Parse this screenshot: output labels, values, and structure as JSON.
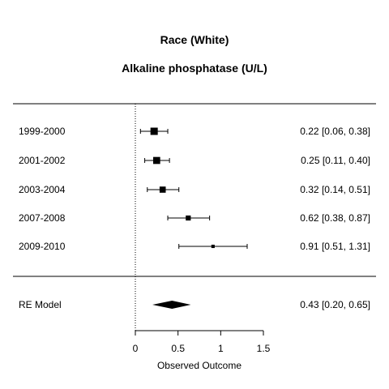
{
  "chart_data": {
    "type": "forest",
    "title": "Race (White)",
    "subtitle": "Alkaline phosphatase (U/L)",
    "xlabel": "Observed Outcome",
    "xlim": [
      0,
      1.5
    ],
    "xticks": [
      0,
      0.5,
      1,
      1.5
    ],
    "xtick_labels": [
      "0",
      "0.5",
      "1",
      "1.5"
    ],
    "reference_line": 0,
    "studies": [
      {
        "label": "1999-2000",
        "estimate": 0.22,
        "lower": 0.06,
        "upper": 0.38,
        "text": "0.22 [0.06, 0.38]",
        "weight": 1.0
      },
      {
        "label": "2001-2002",
        "estimate": 0.25,
        "lower": 0.11,
        "upper": 0.4,
        "text": "0.25 [0.11, 0.40]",
        "weight": 0.95
      },
      {
        "label": "2003-2004",
        "estimate": 0.32,
        "lower": 0.14,
        "upper": 0.51,
        "text": "0.32 [0.14, 0.51]",
        "weight": 0.8
      },
      {
        "label": "2007-2008",
        "estimate": 0.62,
        "lower": 0.38,
        "upper": 0.87,
        "text": "0.62 [0.38, 0.87]",
        "weight": 0.6
      },
      {
        "label": "2009-2010",
        "estimate": 0.91,
        "lower": 0.51,
        "upper": 1.31,
        "text": "0.91 [0.51, 1.31]",
        "weight": 0.3
      }
    ],
    "summary": {
      "label": "RE Model",
      "estimate": 0.43,
      "lower": 0.2,
      "upper": 0.65,
      "text": "0.43 [0.20, 0.65]"
    }
  }
}
